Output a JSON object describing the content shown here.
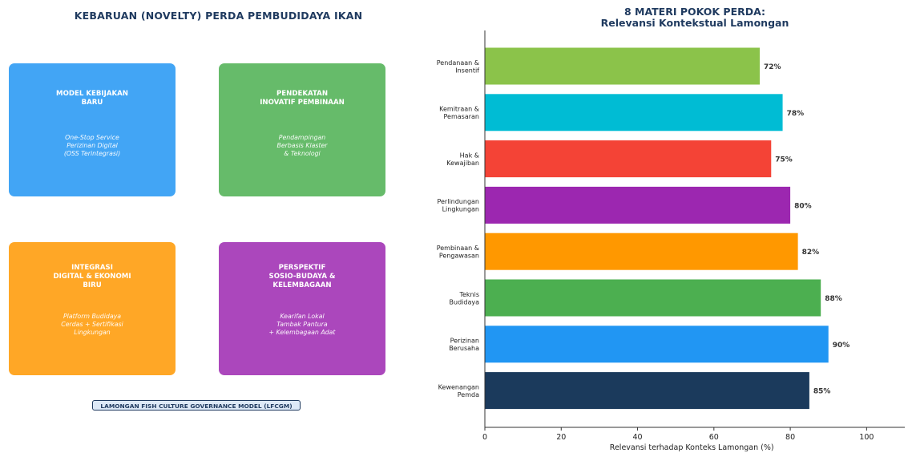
{
  "left_panel": {
    "title": "KEBARUAN (NOVELTY) PERDA PEMBUDIDAYA IKAN",
    "cards": [
      {
        "title": "MODEL KEBIJAKAN\nBARU",
        "desc": "One-Stop Service\nPerizinan Digital\n(OSS Terintegrasi)",
        "color": "#42a5f5"
      },
      {
        "title": "PENDEKATAN\nINOVATIF PEMBINAAN",
        "desc": "Pendampingan\nBerbasis Klaster\n& Teknologi",
        "color": "#66bb6a"
      },
      {
        "title": "INTEGRASI\nDIGITAL & EKONOMI\nBIRU",
        "desc": "Platform Budidaya\nCerdas + Sertifikasi\nLingkungan",
        "color": "#ffa726"
      },
      {
        "title": "PERSPEKTIF\nSOSIO-BUDAYA &\nKELEMBAGAAN",
        "desc": "Kearifan Lokal\nTambak Pantura\n+ Kelembagaan Adat",
        "color": "#ab47bc"
      }
    ],
    "model_label": "LAMONGAN FISH CULTURE GOVERNANCE MODEL (LFCGM)"
  },
  "chart_data": {
    "type": "bar",
    "orientation": "horizontal",
    "title": "8 MATERI POKOK PERDA:",
    "subtitle": "Relevansi Kontekstual Lamongan",
    "xlabel": "Relevansi terhadap Konteks Lamongan (%)",
    "ylabel": "",
    "xlim": [
      0,
      110
    ],
    "xticks": [
      0,
      20,
      40,
      60,
      80,
      100
    ],
    "grid": false,
    "categories": [
      "Pendanaan &\nInsentif",
      "Kemitraan &\nPemasaran",
      "Hak &\nKewajiban",
      "Perlindungan\nLingkungan",
      "Pembinaan &\nPengawasan",
      "Teknis\nBudidaya",
      "Perizinan\nBerusaha",
      "Kewenangan\nPemda"
    ],
    "values": [
      72,
      78,
      75,
      80,
      82,
      88,
      90,
      85
    ],
    "value_labels": [
      "72%",
      "78%",
      "75%",
      "80%",
      "82%",
      "88%",
      "90%",
      "85%"
    ],
    "colors": [
      "#8bc34a",
      "#00bcd4",
      "#f44336",
      "#9c27b0",
      "#ff9800",
      "#4caf50",
      "#2196f3",
      "#1b3a5c"
    ]
  }
}
